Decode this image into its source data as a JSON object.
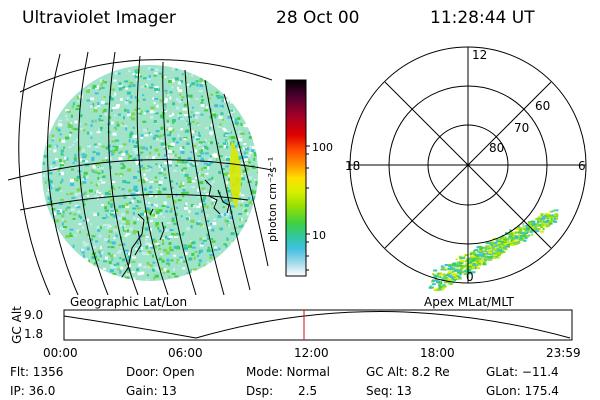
{
  "header": {
    "instrument": "Ultraviolet Imager",
    "date": "28 Oct 00",
    "time": "11:28:44 UT"
  },
  "geo_panel": {
    "label": "Geographic Lat/Lon"
  },
  "colorbar": {
    "unit_label": "photon cm⁻²s⁻¹",
    "ticks": [
      "100",
      "10"
    ],
    "scale": "log",
    "colors": [
      "#000000",
      "#4b0030",
      "#a00028",
      "#e00000",
      "#ff5000",
      "#ff9a00",
      "#ffe000",
      "#d8f000",
      "#9ce000",
      "#40d040",
      "#30c8a0",
      "#40c0e0",
      "#a0d8e8",
      "#ffffff"
    ]
  },
  "polar_panel": {
    "label": "Apex MLat/MLT",
    "mlt_labels": {
      "top": "12",
      "left": "18",
      "right": "6",
      "bottom": "0"
    },
    "lat_labels": [
      "60",
      "70",
      "80"
    ]
  },
  "altitude_plot": {
    "ylabel": "GC Alt",
    "y_ticks": [
      "9.0",
      "1.8"
    ],
    "x_ticks": [
      "00:00",
      "06:00",
      "12:00",
      "18:00",
      "23:59"
    ],
    "marker_color": "#d01010"
  },
  "status": {
    "flt": "Flt: 1356",
    "ip": "IP: 36.0",
    "door": "Door: Open",
    "gain": "Gain: 13",
    "mode": "Mode: Normal",
    "dsp_label": "Dsp:",
    "dsp_value": "2.5",
    "gcalt": "GC Alt: 8.2 Re",
    "seq": "Seq: 13",
    "glat": "GLat: −11.4",
    "glon": "GLon: 175.4"
  }
}
